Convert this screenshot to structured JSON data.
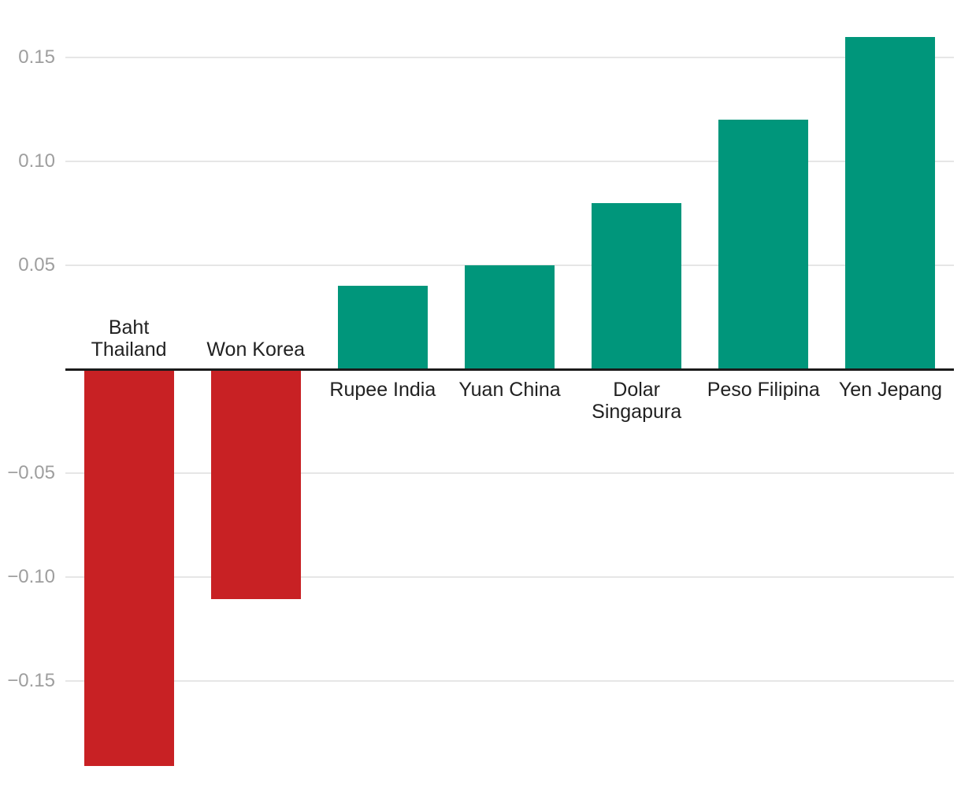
{
  "chart_data": {
    "type": "bar",
    "title": "",
    "categories": [
      "Baht Thailand",
      "Won Korea",
      "Rupee India",
      "Yuan China",
      "Dolar Singapura",
      "Peso Filipina",
      "Yen Jepang"
    ],
    "category_lines": [
      [
        "Baht",
        "Thailand"
      ],
      [
        "Won Korea"
      ],
      [
        "Rupee India"
      ],
      [
        "Yuan China"
      ],
      [
        "Dolar",
        "Singapura"
      ],
      [
        "Peso Filipina"
      ],
      [
        "Yen Jepang"
      ]
    ],
    "values": [
      -0.19,
      -0.11,
      0.04,
      0.05,
      0.08,
      0.12,
      0.16
    ],
    "xlabel": "",
    "ylabel": "",
    "ylim": [
      -0.21,
      0.18
    ],
    "yticks": [
      0.15,
      0.1,
      0.05,
      -0.05,
      -0.1,
      -0.15
    ],
    "ytick_labels": [
      "0.15",
      "0.10",
      "0.05",
      "−0.05",
      "−0.10",
      "−0.15"
    ],
    "grid": true,
    "legend": "none",
    "colors": {
      "positive": "#00967b",
      "negative": "#c82124"
    }
  },
  "style": {
    "background": "#ffffff",
    "grid_color": "#e6e6e6",
    "axis_color": "#1b1b1b",
    "tick_label_color": "#9e9e9e",
    "category_label_color": "#212121"
  }
}
